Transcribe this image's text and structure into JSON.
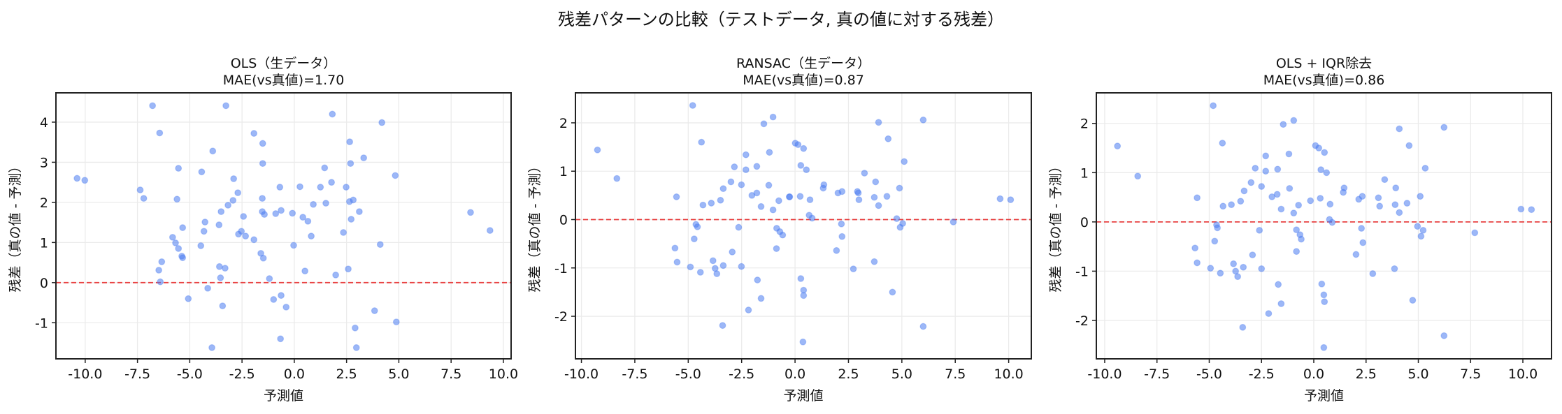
{
  "figure": {
    "suptitle": "残差パターンの比較（テストデータ, 真の値に対する残差）",
    "colors": {
      "point": "#4a7cf0",
      "point_alpha": 0.55,
      "zero_line": "#e84040",
      "grid": "#ebebeb",
      "axes": "#222222"
    }
  },
  "chart_data": [
    {
      "type": "scatter",
      "title": "OLS（生データ）",
      "subtitle": "MAE(vs真値)=1.70",
      "xlabel": "予測値",
      "ylabel": "残差（真の値 - 予測）",
      "xlim": [
        -11.4,
        10.37
      ],
      "ylim": [
        -1.9,
        4.73
      ],
      "xticks": [
        -10.0,
        -7.5,
        -5.0,
        -2.5,
        0.0,
        2.5,
        5.0,
        7.5,
        10.0
      ],
      "xtick_labels": [
        "-10.0",
        "-7.5",
        "-5.0",
        "-2.5",
        "0.0",
        "2.5",
        "5.0",
        "7.5",
        "10.0"
      ],
      "yticks": [
        -1,
        0,
        1,
        2,
        3,
        4
      ],
      "ytick_labels": [
        "-1",
        "0",
        "1",
        "2",
        "3",
        "4"
      ],
      "grid": true,
      "reference_line": {
        "y": 0,
        "style": "dashed"
      },
      "points": [
        [
          -10.39,
          2.6
        ],
        [
          -10.02,
          2.55
        ],
        [
          -7.37,
          2.31
        ],
        [
          -7.2,
          2.1
        ],
        [
          -6.78,
          4.41
        ],
        [
          -6.44,
          3.73
        ],
        [
          -5.54,
          2.85
        ],
        [
          -5.61,
          2.08
        ],
        [
          -5.82,
          1.13
        ],
        [
          -5.68,
          0.99
        ],
        [
          -5.54,
          0.85
        ],
        [
          -5.34,
          1.37
        ],
        [
          -5.38,
          0.66
        ],
        [
          -5.34,
          0.62
        ],
        [
          -6.34,
          0.52
        ],
        [
          -6.48,
          0.31
        ],
        [
          -6.41,
          0.02
        ],
        [
          -4.43,
          2.76
        ],
        [
          -4.47,
          0.92
        ],
        [
          -4.32,
          1.28
        ],
        [
          -4.27,
          1.51
        ],
        [
          -3.9,
          3.28
        ],
        [
          -3.27,
          4.41
        ],
        [
          -3.6,
          1.44
        ],
        [
          -3.5,
          1.77
        ],
        [
          -3.58,
          0.4
        ],
        [
          -3.31,
          0.36
        ],
        [
          -3.53,
          0.12
        ],
        [
          -3.17,
          1.93
        ],
        [
          -2.93,
          2.05
        ],
        [
          -2.9,
          2.59
        ],
        [
          -2.7,
          2.24
        ],
        [
          -2.43,
          1.65
        ],
        [
          -2.53,
          1.28
        ],
        [
          -2.67,
          1.21
        ],
        [
          -2.33,
          1.16
        ],
        [
          -1.93,
          3.72
        ],
        [
          -1.93,
          1.07
        ],
        [
          -1.51,
          3.47
        ],
        [
          -1.51,
          2.97
        ],
        [
          -1.53,
          2.1
        ],
        [
          -1.53,
          1.77
        ],
        [
          -1.43,
          1.7
        ],
        [
          -1.6,
          0.73
        ],
        [
          -1.48,
          0.61
        ],
        [
          -4.14,
          -0.14
        ],
        [
          -5.07,
          -0.4
        ],
        [
          -3.43,
          -0.58
        ],
        [
          -3.94,
          -1.62
        ],
        [
          -0.99,
          -0.42
        ],
        [
          -0.63,
          -0.32
        ],
        [
          -0.39,
          -0.61
        ],
        [
          -0.66,
          -1.4
        ],
        [
          -1.19,
          0.1
        ],
        [
          1.82,
          4.2
        ],
        [
          1.45,
          2.86
        ],
        [
          1.78,
          2.5
        ],
        [
          1.25,
          2.38
        ],
        [
          0.27,
          2.39
        ],
        [
          -0.69,
          2.38
        ],
        [
          0.91,
          1.95
        ],
        [
          1.51,
          1.98
        ],
        [
          -0.09,
          1.73
        ],
        [
          -0.63,
          1.8
        ],
        [
          -0.89,
          1.72
        ],
        [
          0.41,
          1.63
        ],
        [
          0.65,
          1.53
        ],
        [
          0.81,
          1.16
        ],
        [
          -0.03,
          0.93
        ],
        [
          2.35,
          1.25
        ],
        [
          0.51,
          0.29
        ],
        [
          1.98,
          0.19
        ],
        [
          4.19,
          3.99
        ],
        [
          2.65,
          3.51
        ],
        [
          2.69,
          2.97
        ],
        [
          3.32,
          3.11
        ],
        [
          4.83,
          2.67
        ],
        [
          2.48,
          2.38
        ],
        [
          2.64,
          2.02
        ],
        [
          2.82,
          2.06
        ],
        [
          3.11,
          1.77
        ],
        [
          2.72,
          1.58
        ],
        [
          4.11,
          0.95
        ],
        [
          8.43,
          1.75
        ],
        [
          9.36,
          1.3
        ],
        [
          2.58,
          0.34
        ],
        [
          3.84,
          -0.7
        ],
        [
          4.88,
          -0.98
        ],
        [
          2.91,
          -1.13
        ],
        [
          2.97,
          -1.62
        ]
      ]
    },
    {
      "type": "scatter",
      "title": "RANSAC（生データ）",
      "subtitle": "MAE(vs真値)=0.87",
      "xlabel": "予測値",
      "ylabel": "残差（真の値 - 予測）",
      "xlim": [
        -10.28,
        11.06
      ],
      "ylim": [
        -2.88,
        2.62
      ],
      "xticks": [
        -10.0,
        -7.5,
        -5.0,
        -2.5,
        0.0,
        2.5,
        5.0,
        7.5,
        10.0
      ],
      "xtick_labels": [
        "-10.0",
        "-7.5",
        "-5.0",
        "-2.5",
        "0.0",
        "2.5",
        "5.0",
        "7.5",
        "10.0"
      ],
      "yticks": [
        -2,
        -1,
        0,
        1,
        2
      ],
      "ytick_labels": [
        "-2",
        "-1",
        "0",
        "1",
        "2"
      ],
      "grid": true,
      "reference_line": {
        "y": 0,
        "style": "dashed"
      },
      "points": [
        [
          -9.25,
          1.44
        ],
        [
          -8.34,
          0.85
        ],
        [
          -4.79,
          2.36
        ],
        [
          -4.38,
          1.6
        ],
        [
          -5.55,
          0.47
        ],
        [
          -4.31,
          0.3
        ],
        [
          -3.92,
          0.34
        ],
        [
          -3.49,
          0.4
        ],
        [
          -3.36,
          0.64
        ],
        [
          -3.0,
          0.78
        ],
        [
          -2.84,
          1.09
        ],
        [
          -2.51,
          0.72
        ],
        [
          -2.3,
          1.34
        ],
        [
          -2.3,
          1.03
        ],
        [
          -2.02,
          0.5
        ],
        [
          -1.79,
          0.55
        ],
        [
          -1.79,
          1.1
        ],
        [
          -1.59,
          0.27
        ],
        [
          -1.46,
          1.98
        ],
        [
          -1.03,
          2.12
        ],
        [
          -1.2,
          1.39
        ],
        [
          -1.23,
          0.71
        ],
        [
          -0.76,
          0.39
        ],
        [
          -1.03,
          0.2
        ],
        [
          -0.27,
          0.47
        ],
        [
          -4.64,
          -0.1
        ],
        [
          -4.57,
          -0.15
        ],
        [
          -4.72,
          -0.4
        ],
        [
          -5.62,
          -0.59
        ],
        [
          -5.52,
          -0.88
        ],
        [
          -4.9,
          -0.98
        ],
        [
          -4.43,
          -1.09
        ],
        [
          -3.84,
          -0.85
        ],
        [
          -3.74,
          -1.01
        ],
        [
          -3.66,
          -1.12
        ],
        [
          -3.36,
          -0.95
        ],
        [
          -3.39,
          -2.19
        ],
        [
          -2.94,
          -0.67
        ],
        [
          -2.64,
          -0.16
        ],
        [
          -2.51,
          -0.97
        ],
        [
          -2.18,
          -1.87
        ],
        [
          -1.76,
          -1.25
        ],
        [
          -1.59,
          -1.63
        ],
        [
          -0.86,
          -0.18
        ],
        [
          -0.71,
          -0.25
        ],
        [
          -0.58,
          -0.32
        ],
        [
          -0.87,
          -0.6
        ],
        [
          -0.25,
          0.47
        ],
        [
          0.01,
          1.58
        ],
        [
          0.14,
          1.55
        ],
        [
          0.4,
          1.47
        ],
        [
          0.27,
          1.12
        ],
        [
          0.53,
          1.03
        ],
        [
          0.24,
          0.48
        ],
        [
          0.7,
          0.41
        ],
        [
          0.66,
          0.09
        ],
        [
          0.8,
          0.03
        ],
        [
          1.35,
          0.72
        ],
        [
          1.32,
          0.65
        ],
        [
          2.01,
          0.55
        ],
        [
          2.2,
          0.58
        ],
        [
          2.92,
          0.58
        ],
        [
          2.96,
          0.55
        ],
        [
          2.99,
          0.41
        ],
        [
          3.25,
          0.96
        ],
        [
          3.77,
          0.78
        ],
        [
          3.71,
          0.46
        ],
        [
          3.91,
          0.29
        ],
        [
          4.3,
          0.48
        ],
        [
          3.91,
          2.01
        ],
        [
          4.36,
          1.67
        ],
        [
          5.11,
          1.2
        ],
        [
          4.89,
          0.65
        ],
        [
          6.0,
          2.06
        ],
        [
          4.76,
          0.02
        ],
        [
          5.04,
          -0.08
        ],
        [
          4.92,
          -0.16
        ],
        [
          7.41,
          -0.05
        ],
        [
          9.6,
          0.43
        ],
        [
          10.09,
          0.41
        ],
        [
          2.17,
          -0.09
        ],
        [
          2.2,
          -0.35
        ],
        [
          1.94,
          -0.64
        ],
        [
          2.73,
          -1.02
        ],
        [
          3.71,
          -0.87
        ],
        [
          4.56,
          -1.5
        ],
        [
          6.0,
          -2.21
        ],
        [
          0.27,
          -1.22
        ],
        [
          0.4,
          -1.46
        ],
        [
          0.4,
          -1.57
        ],
        [
          0.37,
          -2.53
        ]
      ]
    },
    {
      "type": "scatter",
      "title": "OLS + IQR除去",
      "subtitle": "MAE(vs真値)=0.86",
      "xlabel": "予測値",
      "ylabel": "残差（真の値 - 予測）",
      "xlim": [
        -10.4,
        11.37
      ],
      "ylim": [
        -2.78,
        2.62
      ],
      "xticks": [
        -10.0,
        -7.5,
        -5.0,
        -2.5,
        0.0,
        2.5,
        5.0,
        7.5,
        10.0
      ],
      "xtick_labels": [
        "-10.0",
        "-7.5",
        "-5.0",
        "-2.5",
        "0.0",
        "2.5",
        "5.0",
        "7.5",
        "10.0"
      ],
      "yticks": [
        -2,
        -1,
        0,
        1,
        2
      ],
      "ytick_labels": [
        "-2",
        "-1",
        "0",
        "1",
        "2"
      ],
      "grid": true,
      "reference_line": {
        "y": 0,
        "style": "dashed"
      },
      "points": [
        [
          -9.39,
          1.54
        ],
        [
          -8.42,
          0.93
        ],
        [
          -4.81,
          2.36
        ],
        [
          -4.37,
          1.6
        ],
        [
          -5.58,
          0.49
        ],
        [
          -4.34,
          0.32
        ],
        [
          -3.94,
          0.35
        ],
        [
          -3.5,
          0.42
        ],
        [
          -3.33,
          0.63
        ],
        [
          -3.0,
          0.8
        ],
        [
          -2.8,
          1.09
        ],
        [
          -2.5,
          0.72
        ],
        [
          -2.3,
          1.34
        ],
        [
          -2.3,
          1.03
        ],
        [
          -2.0,
          0.51
        ],
        [
          -1.75,
          0.56
        ],
        [
          -1.73,
          1.07
        ],
        [
          -1.56,
          0.26
        ],
        [
          -1.46,
          1.98
        ],
        [
          -0.96,
          2.06
        ],
        [
          -1.19,
          1.38
        ],
        [
          -1.16,
          0.68
        ],
        [
          -0.96,
          0.18
        ],
        [
          -0.73,
          0.34
        ],
        [
          -4.65,
          -0.06
        ],
        [
          -4.61,
          -0.12
        ],
        [
          -4.74,
          -0.39
        ],
        [
          -5.68,
          -0.53
        ],
        [
          -5.58,
          -0.83
        ],
        [
          -4.94,
          -0.94
        ],
        [
          -4.47,
          -1.04
        ],
        [
          -3.84,
          -0.85
        ],
        [
          -3.74,
          -1.0
        ],
        [
          -3.64,
          -1.11
        ],
        [
          -3.37,
          -0.92
        ],
        [
          -3.4,
          -2.14
        ],
        [
          -2.93,
          -0.67
        ],
        [
          -2.6,
          -0.17
        ],
        [
          -2.5,
          -0.95
        ],
        [
          -2.16,
          -1.86
        ],
        [
          -1.7,
          -1.27
        ],
        [
          -1.56,
          -1.66
        ],
        [
          -0.83,
          -0.16
        ],
        [
          -0.66,
          -0.26
        ],
        [
          -0.6,
          -0.35
        ],
        [
          -0.83,
          -0.6
        ],
        [
          -0.16,
          0.43
        ],
        [
          0.08,
          1.55
        ],
        [
          0.24,
          1.5
        ],
        [
          0.51,
          1.41
        ],
        [
          0.34,
          1.06
        ],
        [
          0.61,
          1.0
        ],
        [
          0.31,
          0.48
        ],
        [
          0.78,
          0.36
        ],
        [
          0.75,
          0.05
        ],
        [
          0.88,
          -0.01
        ],
        [
          1.45,
          0.69
        ],
        [
          1.41,
          0.6
        ],
        [
          2.15,
          0.46
        ],
        [
          2.32,
          0.52
        ],
        [
          3.09,
          0.49
        ],
        [
          3.15,
          0.32
        ],
        [
          3.39,
          0.86
        ],
        [
          3.92,
          0.69
        ],
        [
          3.89,
          0.35
        ],
        [
          4.09,
          0.19
        ],
        [
          4.46,
          0.38
        ],
        [
          4.09,
          1.89
        ],
        [
          4.56,
          1.55
        ],
        [
          5.33,
          1.09
        ],
        [
          5.09,
          0.52
        ],
        [
          6.23,
          1.92
        ],
        [
          4.96,
          -0.09
        ],
        [
          5.23,
          -0.17
        ],
        [
          5.13,
          -0.29
        ],
        [
          7.7,
          -0.22
        ],
        [
          9.91,
          0.26
        ],
        [
          10.41,
          0.25
        ],
        [
          2.28,
          -0.13
        ],
        [
          2.35,
          -0.42
        ],
        [
          2.02,
          -0.66
        ],
        [
          2.82,
          -1.05
        ],
        [
          3.86,
          -0.95
        ],
        [
          4.73,
          -1.59
        ],
        [
          6.23,
          -2.31
        ],
        [
          0.38,
          -1.26
        ],
        [
          0.48,
          -1.48
        ],
        [
          0.51,
          -1.62
        ],
        [
          0.48,
          -2.55
        ]
      ]
    }
  ]
}
